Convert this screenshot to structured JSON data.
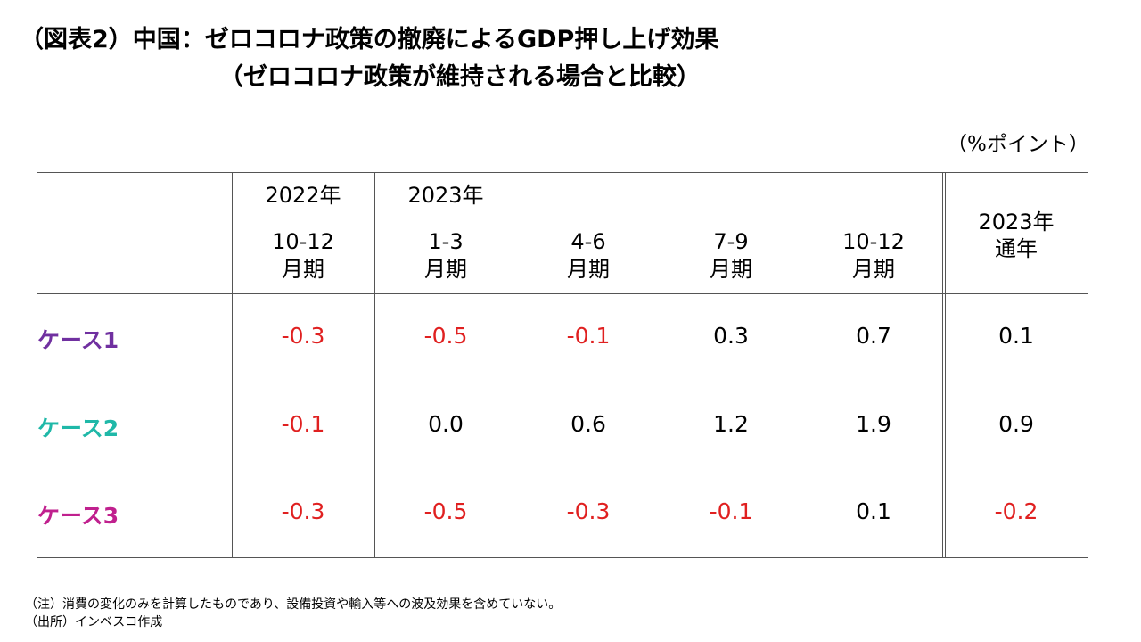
{
  "title": {
    "line1": "（図表2）中国：ゼロコロナ政策の撤廃によるGDP押し上げ効果",
    "line2": "（ゼロコロナ政策が維持される場合と比較）"
  },
  "unit": "（%ポイント）",
  "columns": [
    {
      "year": "2022年",
      "period": "10-12",
      "suffix": "月期"
    },
    {
      "year": "2023年",
      "period": "1-3",
      "suffix": "月期"
    },
    {
      "year": "",
      "period": "4-6",
      "suffix": "月期"
    },
    {
      "year": "",
      "period": "7-9",
      "suffix": "月期"
    },
    {
      "year": "",
      "period": "10-12",
      "suffix": "月期"
    },
    {
      "year": "2023年",
      "period": "通年",
      "suffix": ""
    }
  ],
  "rows": [
    {
      "label": "ケース1",
      "label_color": "#7030a0",
      "values": [
        "-0.3",
        "-0.5",
        "-0.1",
        "0.3",
        "0.7",
        "0.1"
      ]
    },
    {
      "label": "ケース2",
      "label_color": "#1fb8a8",
      "values": [
        "-0.1",
        "0.0",
        "0.6",
        "1.2",
        "1.9",
        "0.9"
      ]
    },
    {
      "label": "ケース3",
      "label_color": "#c0208e",
      "values": [
        "-0.3",
        "-0.5",
        "-0.3",
        "-0.1",
        "0.1",
        "-0.2"
      ]
    }
  ],
  "colors": {
    "negative": "#e02020",
    "positive": "#000000"
  },
  "notes": [
    "（注）消費の変化のみを計算したものであり、設備投資や輸入等への波及効果を含めていない。",
    "（出所）インベスコ作成"
  ]
}
